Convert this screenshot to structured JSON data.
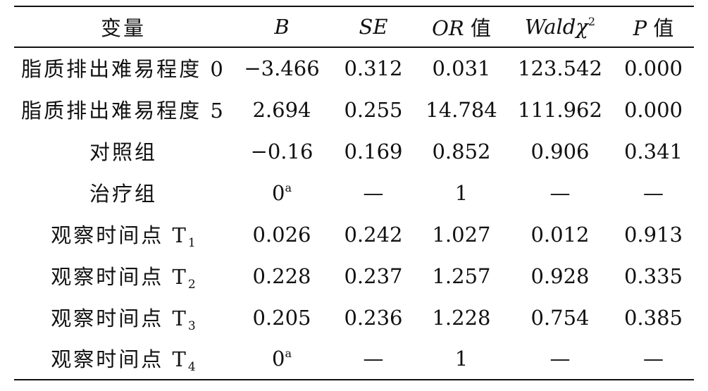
{
  "headers": {
    "variable": "变量",
    "b": "B",
    "se": "SE",
    "or_italic": "OR",
    "or_suffix": " 值",
    "wald_italic": "Wald",
    "wald_chi": "χ",
    "wald_sup": "2",
    "p_italic": "P",
    "p_suffix": " 值"
  },
  "rows": [
    {
      "label": "脂质排出难易程度 0",
      "label_sub": "",
      "b": "−3.466",
      "b_sup": "",
      "se": "0.312",
      "or": "0.031",
      "wald": "123.542",
      "p": "0.000"
    },
    {
      "label": "脂质排出难易程度 5",
      "label_sub": "",
      "b": "2.694",
      "b_sup": "",
      "se": "0.255",
      "or": "14.784",
      "wald": "111.962",
      "p": "0.000"
    },
    {
      "label": "对照组",
      "label_sub": "",
      "b": "−0.16",
      "b_sup": "",
      "se": "0.169",
      "or": "0.852",
      "wald": "0.906",
      "p": "0.341"
    },
    {
      "label": "治疗组",
      "label_sub": "",
      "b": "0",
      "b_sup": "a",
      "se": "—",
      "or": "1",
      "wald": "—",
      "p": "—"
    },
    {
      "label": "观察时间点 T",
      "label_sub": "1",
      "b": "0.026",
      "b_sup": "",
      "se": "0.242",
      "or": "1.027",
      "wald": "0.012",
      "p": "0.913"
    },
    {
      "label": "观察时间点 T",
      "label_sub": "2",
      "b": "0.228",
      "b_sup": "",
      "se": "0.237",
      "or": "1.257",
      "wald": "0.928",
      "p": "0.335"
    },
    {
      "label": "观察时间点 T",
      "label_sub": "3",
      "b": "0.205",
      "b_sup": "",
      "se": "0.236",
      "or": "1.228",
      "wald": "0.754",
      "p": "0.385"
    },
    {
      "label": "观察时间点 T",
      "label_sub": "4",
      "b": "0",
      "b_sup": "a",
      "se": "—",
      "or": "1",
      "wald": "—",
      "p": "—"
    }
  ]
}
